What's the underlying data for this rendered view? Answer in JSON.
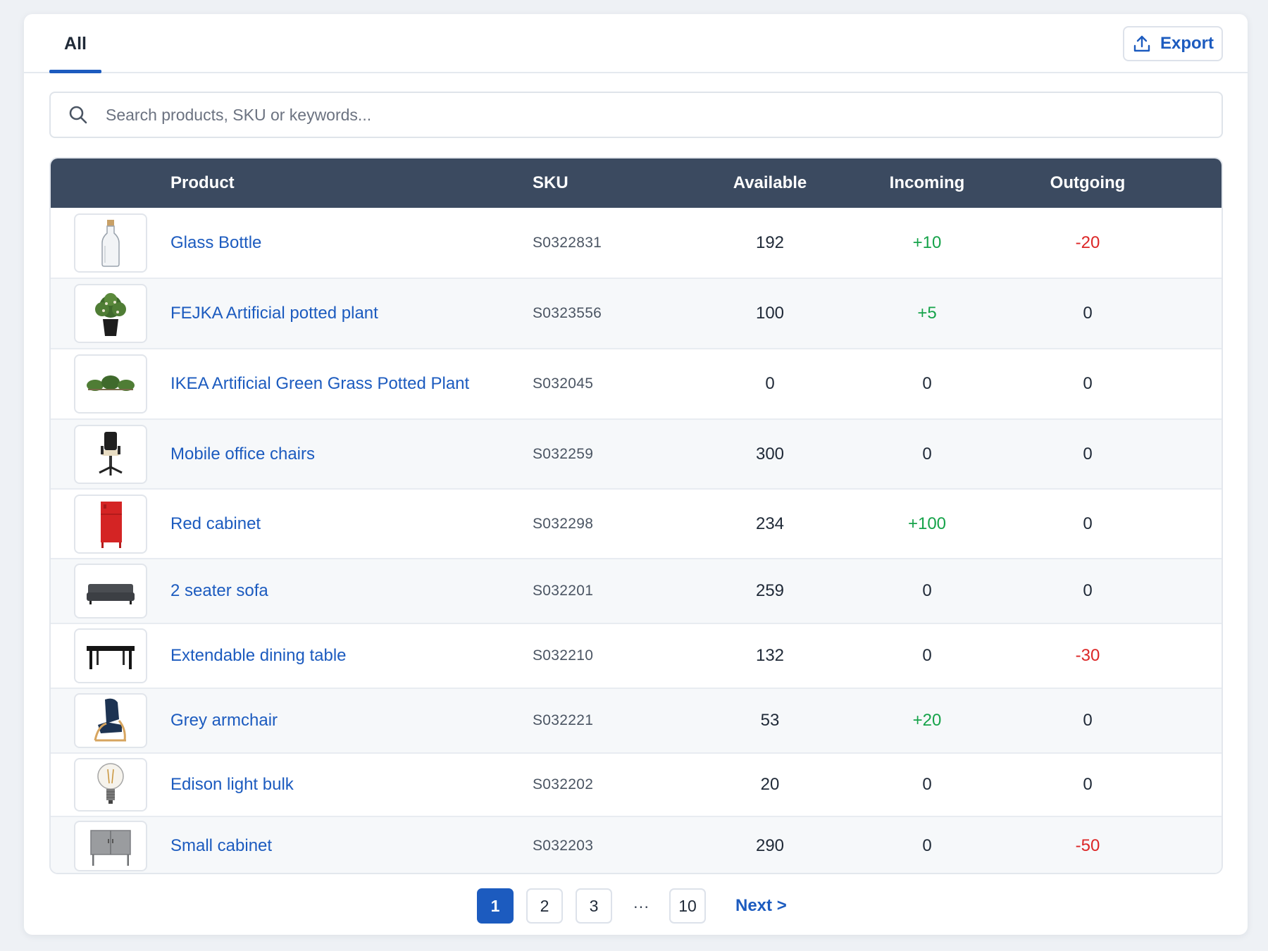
{
  "tabs": [
    {
      "label": "All",
      "active": true
    }
  ],
  "toolbar": {
    "export_label": "Export",
    "export_icon": "upload-icon"
  },
  "search": {
    "placeholder": "Search products, SKU or keywords...",
    "value": "",
    "icon": "search-icon"
  },
  "table": {
    "columns": [
      "Product",
      "SKU",
      "Available",
      "Incoming",
      "Outgoing"
    ],
    "rows": [
      {
        "product": "Glass Bottle",
        "sku": "S0322831",
        "available": "192",
        "incoming": "+10",
        "outgoing": "-20",
        "image": "glass-bottle"
      },
      {
        "product": "FEJKA Artificial potted plant",
        "sku": "S0323556",
        "available": "100",
        "incoming": "+5",
        "outgoing": "0",
        "image": "potted-plant"
      },
      {
        "product": "IKEA Artificial Green Grass Potted Plant",
        "sku": "S032045",
        "available": "0",
        "incoming": "0",
        "outgoing": "0",
        "image": "grass-plant"
      },
      {
        "product": "Mobile office chairs",
        "sku": "S032259",
        "available": "300",
        "incoming": "0",
        "outgoing": "0",
        "image": "office-chair"
      },
      {
        "product": "Red cabinet",
        "sku": "S032298",
        "available": "234",
        "incoming": "+100",
        "outgoing": "0",
        "image": "red-cabinet"
      },
      {
        "product": "2 seater sofa",
        "sku": "S032201",
        "available": "259",
        "incoming": "0",
        "outgoing": "0",
        "image": "sofa"
      },
      {
        "product": "Extendable dining table",
        "sku": "S032210",
        "available": "132",
        "incoming": "0",
        "outgoing": "-30",
        "image": "dining-table"
      },
      {
        "product": "Grey armchair",
        "sku": "S032221",
        "available": "53",
        "incoming": "+20",
        "outgoing": "0",
        "image": "armchair"
      },
      {
        "product": "Edison light bulk",
        "sku": "S032202",
        "available": "20",
        "incoming": "0",
        "outgoing": "0",
        "image": "light-bulb"
      },
      {
        "product": "Small cabinet",
        "sku": "S032203",
        "available": "290",
        "incoming": "0",
        "outgoing": "-50",
        "image": "small-cabinet"
      }
    ]
  },
  "pagination": {
    "pages": [
      "1",
      "2",
      "3"
    ],
    "ellipsis": "···",
    "last": "10",
    "current": "1",
    "next_label": "Next >"
  },
  "colors": {
    "accent": "#1c5bbf",
    "header_bg": "#3b4a60",
    "positive": "#16a34a",
    "negative": "#dc2626"
  }
}
